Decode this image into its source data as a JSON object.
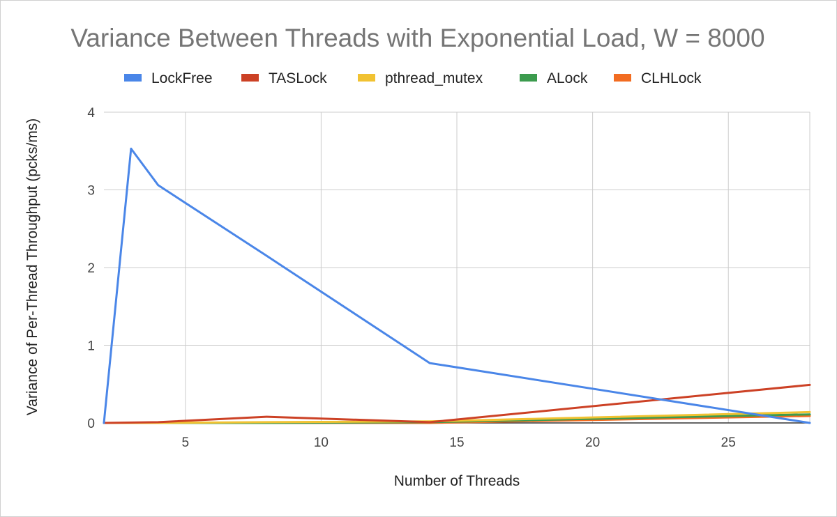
{
  "chart_data": {
    "type": "line",
    "title": "Variance Between Threads with Exponential Load, W = 8000",
    "xlabel": "Number of Threads",
    "ylabel": "Variance of Per-Thread Throughput (pcks/ms)",
    "xlim": [
      2,
      28
    ],
    "ylim": [
      0,
      4
    ],
    "x_ticks": [
      5,
      10,
      15,
      20,
      25
    ],
    "y_ticks": [
      0,
      1,
      2,
      3,
      4
    ],
    "grid": true,
    "legend_position": "top",
    "series": [
      {
        "name": "LockFree",
        "color": "#4a86e8",
        "points": [
          [
            2,
            0
          ],
          [
            3,
            3.53
          ],
          [
            4,
            3.06
          ],
          [
            8,
            2.15
          ],
          [
            14,
            0.77
          ],
          [
            28,
            0
          ]
        ]
      },
      {
        "name": "TASLock",
        "color": "#cc4125",
        "points": [
          [
            2,
            0
          ],
          [
            4,
            0.01
          ],
          [
            8,
            0.08
          ],
          [
            14,
            0.01
          ],
          [
            28,
            0.49
          ]
        ]
      },
      {
        "name": "pthread_mutex",
        "color": "#f1c232",
        "points": [
          [
            2,
            0
          ],
          [
            4,
            0
          ],
          [
            8,
            0.01
          ],
          [
            14,
            0.02
          ],
          [
            28,
            0.14
          ]
        ]
      },
      {
        "name": "ALock",
        "color": "#3c9b4e",
        "points": [
          [
            2,
            0
          ],
          [
            4,
            0
          ],
          [
            8,
            0
          ],
          [
            14,
            0.01
          ],
          [
            28,
            0.11
          ]
        ]
      },
      {
        "name": "CLHLock",
        "color": "#f26c21",
        "points": [
          [
            2,
            0
          ],
          [
            4,
            0
          ],
          [
            8,
            0
          ],
          [
            14,
            0
          ],
          [
            28,
            0.09
          ]
        ]
      }
    ]
  }
}
